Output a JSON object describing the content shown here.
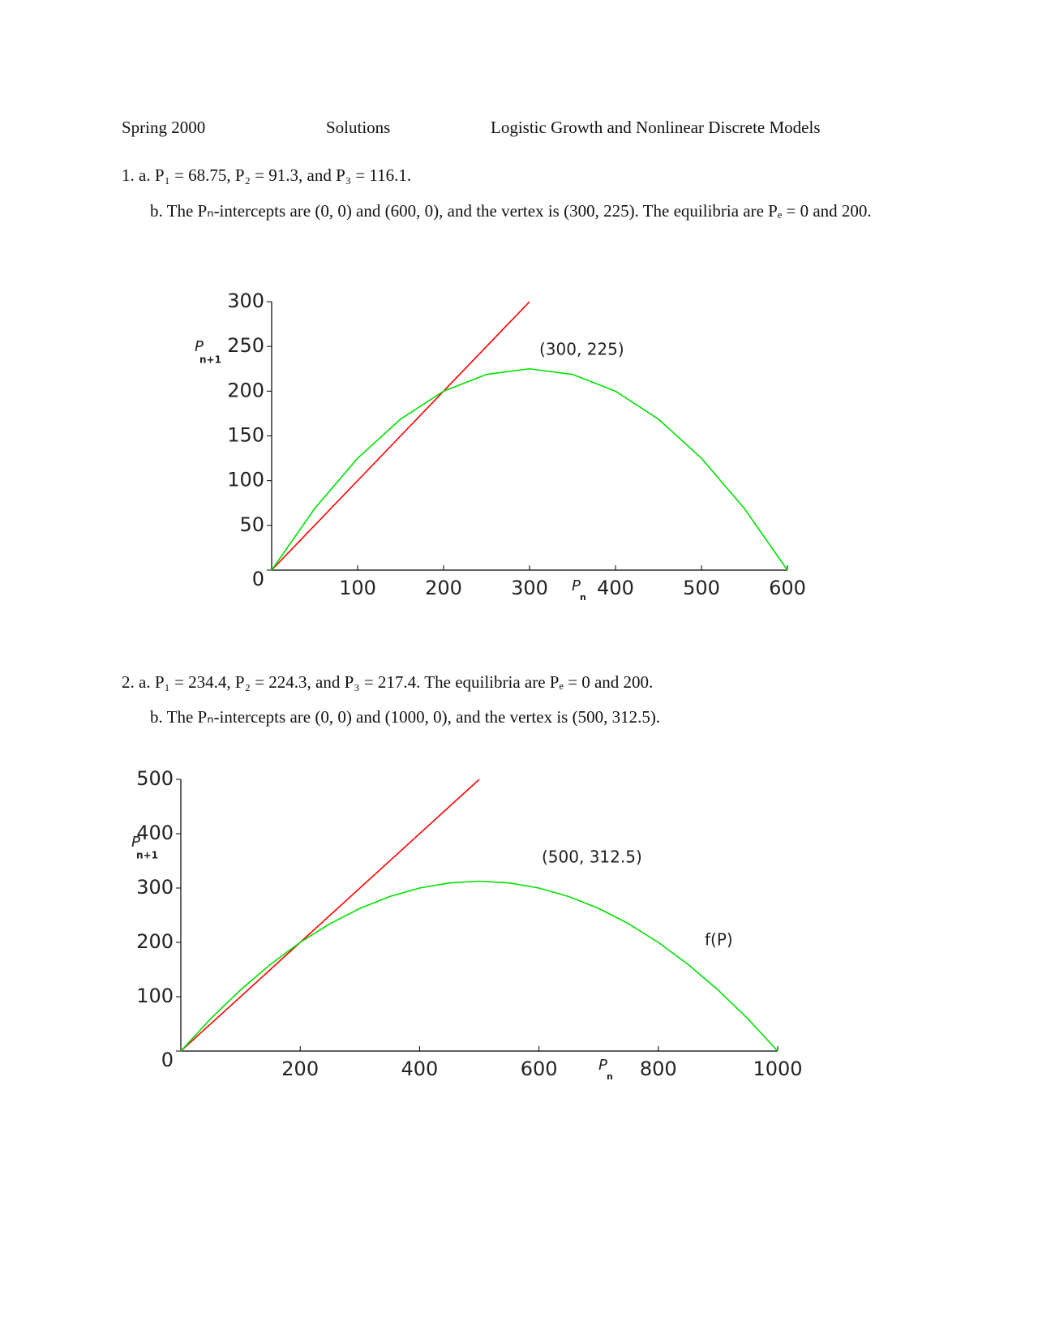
{
  "header": {
    "left": "Spring 2000",
    "center": "Solutions",
    "right": "Logistic Growth and Nonlinear Discrete Models"
  },
  "problems": [
    {
      "a": "1. a. P₁ = 68.75, P₂ = 91.3, and P₃ = 116.1.",
      "b": "b. The Pₙ-intercepts are (0, 0) and (600, 0), and the vertex is (300, 225). The equilibria are Pₑ = 0 and 200."
    },
    {
      "a": "2. a. P₁ = 234.4, P₂ = 224.3, and P₃ = 217.4. The equilibria are Pₑ = 0 and 200.",
      "b": "b. The Pₙ-intercepts are (0, 0) and (1000, 0), and the vertex is (500, 312.5)."
    }
  ],
  "chart_data": [
    {
      "type": "line",
      "x_label": {
        "text": "P",
        "subscript": "n"
      },
      "y_label": {
        "text": "P",
        "subscript": "n+1"
      },
      "xlim": [
        0,
        600
      ],
      "ylim": [
        0,
        300
      ],
      "xticks": [
        100,
        200,
        300,
        400,
        500,
        600
      ],
      "yticks": [
        0,
        50,
        100,
        150,
        200,
        250,
        300
      ],
      "series": [
        {
          "color": "#ff0000",
          "x": [
            0,
            300
          ],
          "values": [
            0,
            300
          ]
        },
        {
          "color": "#00e000",
          "x": [
            0,
            50,
            100,
            150,
            200,
            250,
            300,
            350,
            400,
            450,
            500,
            550,
            600
          ],
          "values": [
            0,
            68.75,
            125,
            168.75,
            200,
            218.75,
            225,
            218.75,
            200,
            168.75,
            125,
            68.75,
            0
          ]
        }
      ],
      "annotations": [
        "(300, 225)"
      ]
    },
    {
      "type": "line",
      "x_label": {
        "text": "P",
        "subscript": "n"
      },
      "y_label": {
        "text": "P",
        "subscript": "n+1"
      },
      "xlim": [
        0,
        1000
      ],
      "ylim": [
        0,
        500
      ],
      "xticks": [
        200,
        400,
        600,
        800,
        1000
      ],
      "yticks": [
        0,
        100,
        200,
        300,
        400,
        500
      ],
      "series": [
        {
          "color": "#ff0000",
          "x": [
            0,
            500
          ],
          "values": [
            0,
            500
          ]
        },
        {
          "color": "#00e000",
          "x": [
            0,
            50,
            100,
            150,
            200,
            250,
            300,
            350,
            400,
            450,
            500,
            550,
            600,
            650,
            700,
            750,
            800,
            850,
            900,
            950,
            1000
          ],
          "values": [
            0,
            59.375,
            112.5,
            159.375,
            200,
            234.375,
            262.5,
            284.375,
            300,
            309.375,
            312.5,
            309.375,
            300,
            284.375,
            262.5,
            234.375,
            200,
            159.375,
            112.5,
            59.375,
            0
          ]
        }
      ],
      "annotations": [
        "(500, 312.5)",
        "f(P)"
      ]
    }
  ]
}
